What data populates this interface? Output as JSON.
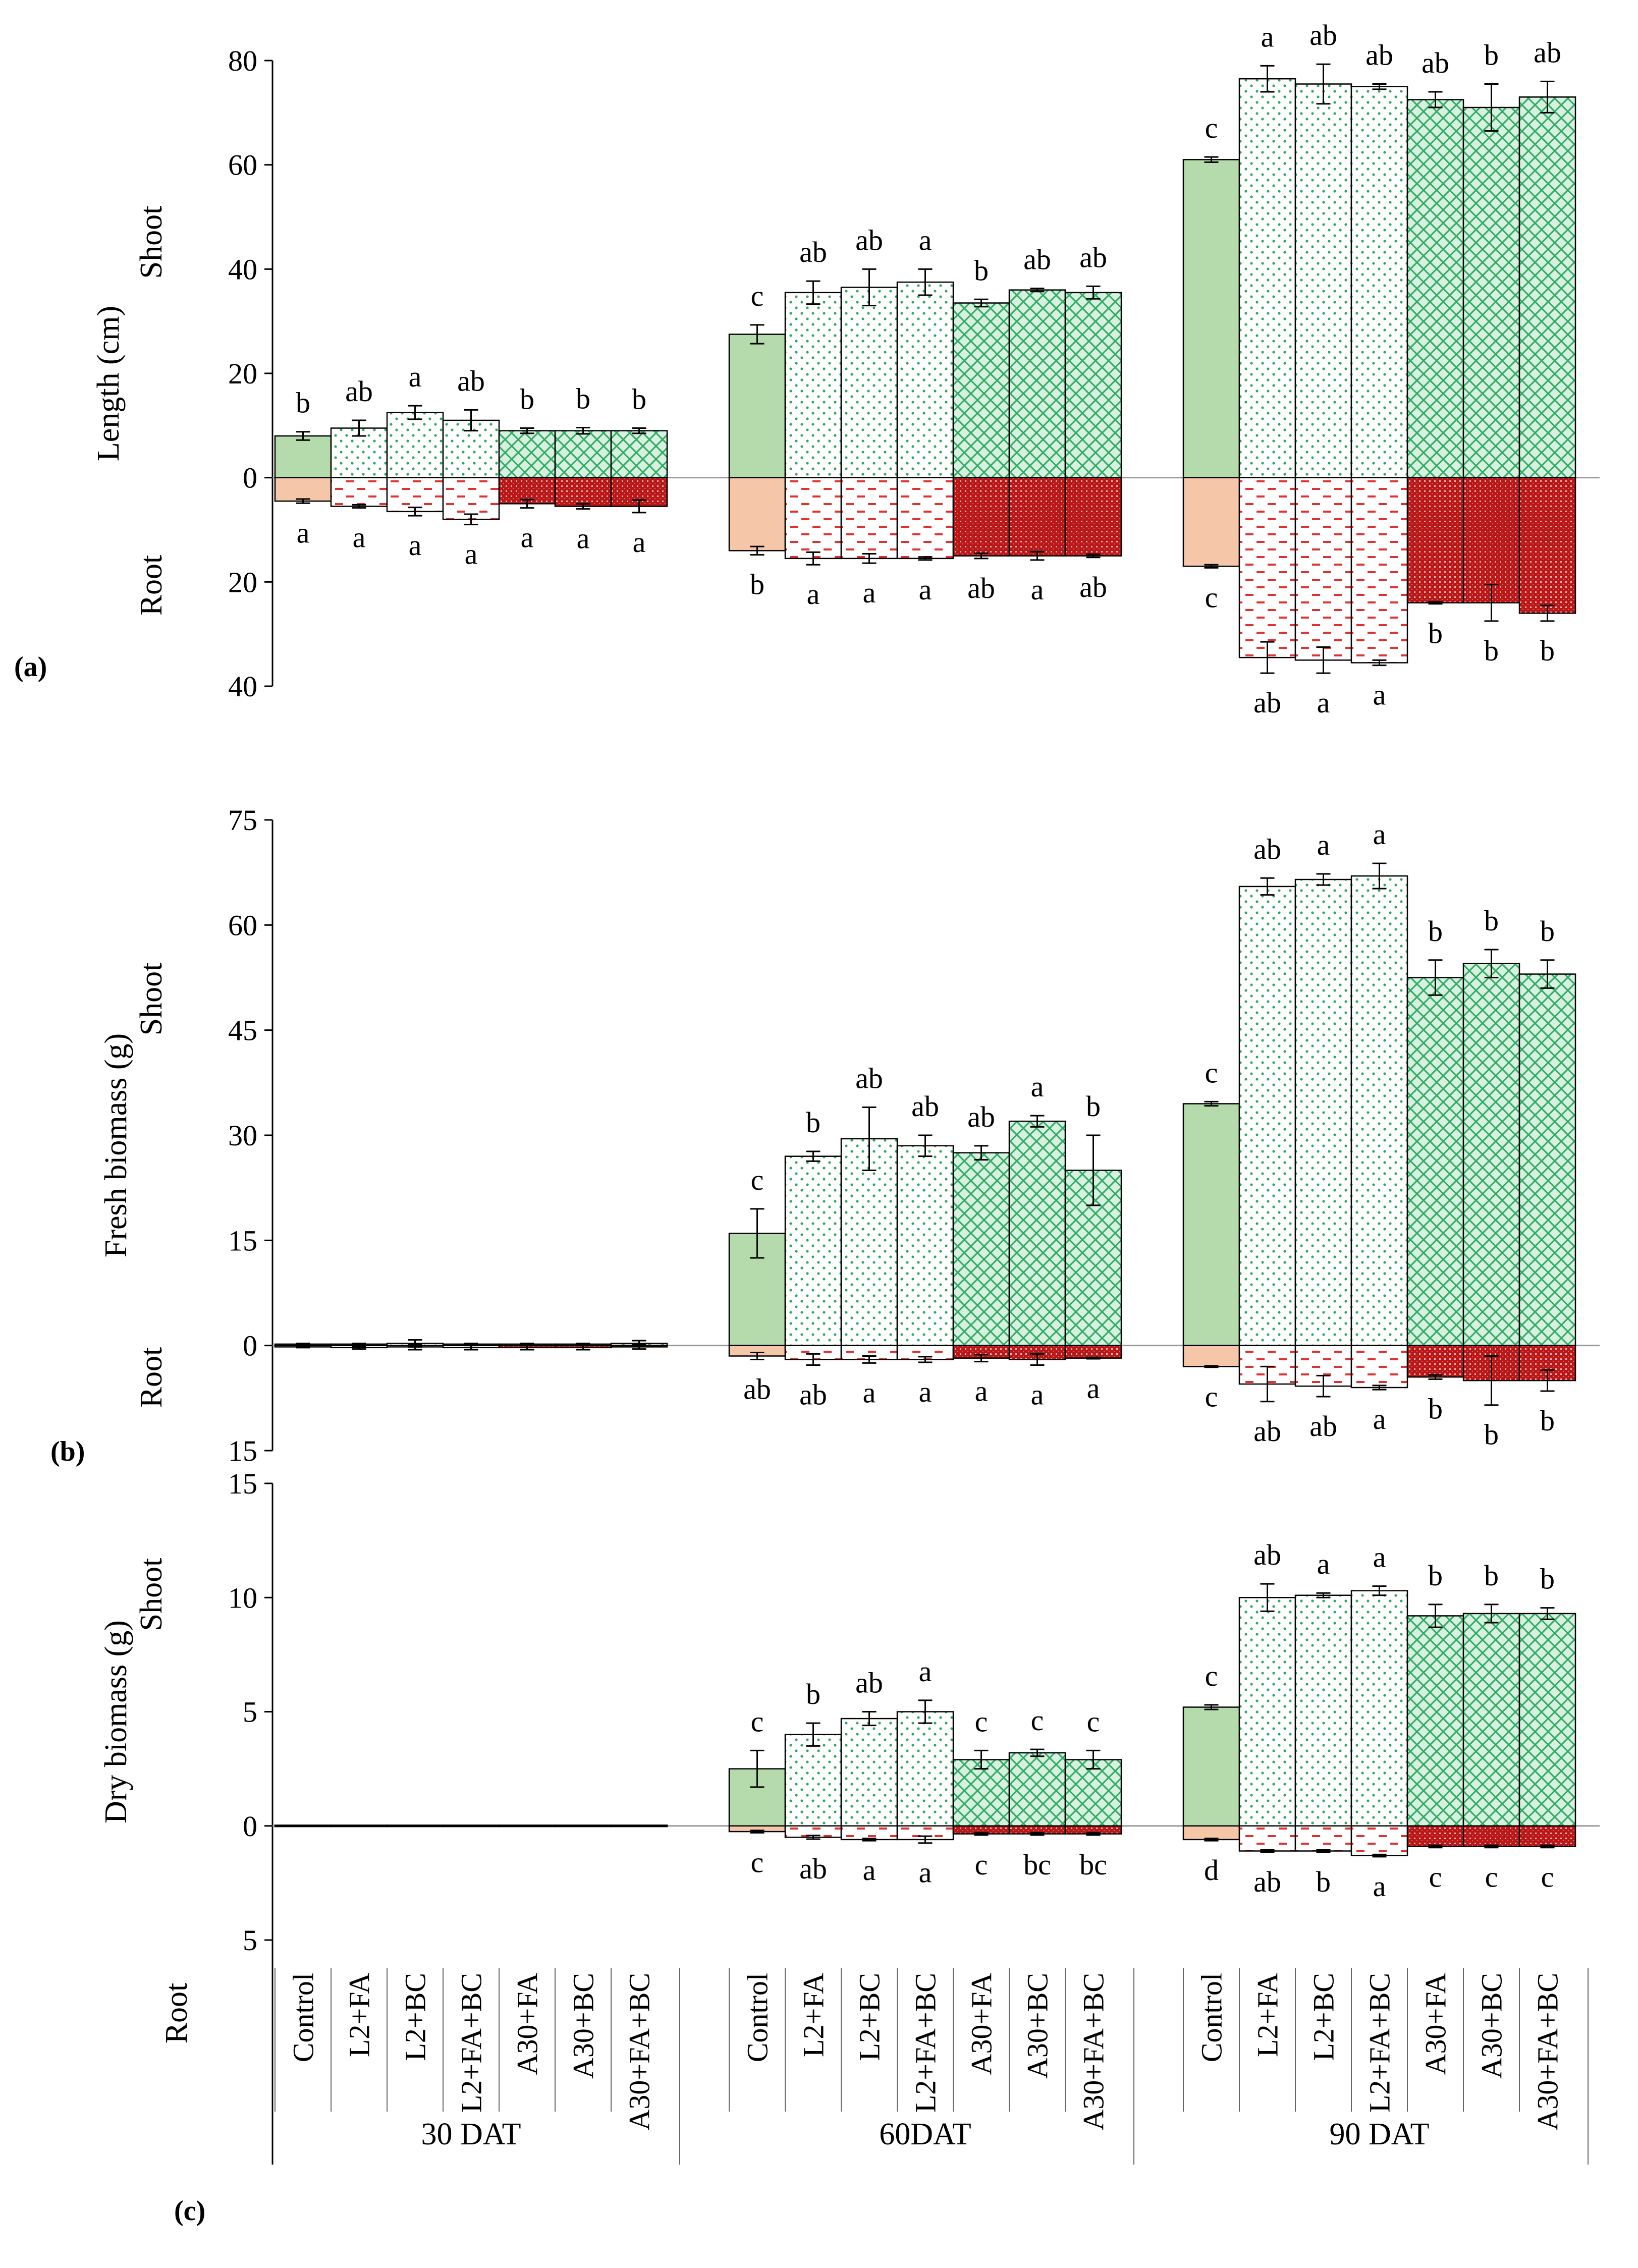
{
  "colors": {
    "control_shoot": "#b5dbad",
    "control_root": "#f6c6a8",
    "L2_shoot_dot": "#2ea85e",
    "L2_root_dash": "#e03030",
    "A30_shoot_fill": "#d8f0df",
    "A30_shoot_hatch": "#32ad66",
    "A30_root_fill": "#b81818",
    "A30_root_dot": "#ffb0b0",
    "axis": "#000000",
    "zero_line": "#999999"
  },
  "chart_data": [
    {
      "type": "bar",
      "panel_label": "(a)",
      "ylabel": "Length (cm)",
      "shoot_label": "Shoot",
      "root_label": "Root",
      "ylim": [
        -40,
        80
      ],
      "ticks": [
        80,
        60,
        40,
        20,
        0,
        -20,
        -40
      ],
      "tick_labels": [
        "80",
        "60",
        "40",
        "20",
        "0",
        "20",
        "40"
      ],
      "groups": [
        "30 DAT",
        "60DAT",
        "90 DAT"
      ],
      "categories": [
        "Control",
        "L2+FA",
        "L2+BC",
        "L2+FA+BC",
        "A30+FA",
        "A30+BC",
        "A30+FA+BC"
      ],
      "series": [
        {
          "name": "Shoot",
          "values": [
            [
              8,
              9.5,
              12.5,
              11,
              9,
              9,
              9
            ],
            [
              27.5,
              35.5,
              36.5,
              37.5,
              33.5,
              36,
              35.5
            ],
            [
              61,
              76.5,
              75.5,
              75,
              72.5,
              71,
              73
            ]
          ],
          "errors": [
            [
              0.8,
              1.5,
              1.3,
              2,
              0.5,
              0.6,
              0.5
            ],
            [
              1.8,
              2.2,
              3.5,
              2.5,
              0.7,
              0.3,
              1.2
            ],
            [
              0.5,
              2.5,
              3.8,
              0.5,
              1.5,
              4.5,
              3
            ]
          ],
          "letters": [
            [
              "b",
              "ab",
              "a",
              "ab",
              "b",
              "b",
              "b"
            ],
            [
              "c",
              "ab",
              "ab",
              "a",
              "b",
              "ab",
              "ab"
            ],
            [
              "c",
              "a",
              "ab",
              "ab",
              "ab",
              "b",
              "ab"
            ]
          ]
        },
        {
          "name": "Root",
          "values": [
            [
              4.5,
              5.5,
              6.5,
              8,
              5,
              5.5,
              5.5
            ],
            [
              14,
              15.5,
              15.5,
              15.5,
              15,
              15,
              15
            ],
            [
              17,
              34.5,
              35,
              35.5,
              24,
              24,
              26
            ]
          ],
          "errors": [
            [
              0.4,
              0.3,
              0.8,
              1,
              0.8,
              0.5,
              1.2
            ],
            [
              0.8,
              1.2,
              0.9,
              0.3,
              0.5,
              0.8,
              0.3
            ],
            [
              0.3,
              3,
              2.5,
              0.5,
              0.2,
              3.5,
              1.5
            ]
          ],
          "letters": [
            [
              "a",
              "a",
              "a",
              "a",
              "a",
              "a",
              "a"
            ],
            [
              "b",
              "a",
              "a",
              "a",
              "ab",
              "a",
              "ab"
            ],
            [
              "c",
              "ab",
              "a",
              "a",
              "b",
              "b",
              "b"
            ]
          ]
        }
      ]
    },
    {
      "type": "bar",
      "panel_label": "(b)",
      "ylabel": "Fresh biomass (g)",
      "shoot_label": "Shoot",
      "root_label": "Root",
      "ylim": [
        -15,
        75
      ],
      "ticks": [
        75,
        60,
        45,
        30,
        15,
        0,
        -15
      ],
      "tick_labels": [
        "75",
        "60",
        "45",
        "30",
        "15",
        "0",
        "15"
      ],
      "groups": [
        "30 DAT",
        "60DAT",
        "90 DAT"
      ],
      "categories": [
        "Control",
        "L2+FA",
        "L2+BC",
        "L2+FA+BC",
        "A30+FA",
        "A30+BC",
        "A30+FA+BC"
      ],
      "series": [
        {
          "name": "Shoot",
          "values": [
            [
              0.2,
              0.2,
              0.3,
              0.2,
              0.2,
              0.2,
              0.3
            ],
            [
              16,
              27,
              29.5,
              28.5,
              27.5,
              32,
              25
            ],
            [
              34.5,
              65.5,
              66.5,
              67,
              52.5,
              54.5,
              53
            ]
          ],
          "errors": [
            [
              0.1,
              0.1,
              0.5,
              0.1,
              0.1,
              0.1,
              0.4
            ],
            [
              3.5,
              0.7,
              4.5,
              1.5,
              1,
              0.8,
              5
            ],
            [
              0.3,
              1.2,
              0.8,
              1.8,
              2.5,
              2,
              2
            ]
          ],
          "letters": [
            [
              "",
              "",
              "",
              "",
              "",
              "",
              ""
            ],
            [
              "c",
              "b",
              "ab",
              "ab",
              "ab",
              "a",
              "b"
            ],
            [
              "c",
              "ab",
              "a",
              "a",
              "b",
              "b",
              "b"
            ]
          ]
        },
        {
          "name": "Root",
          "values": [
            [
              0.2,
              0.3,
              0.2,
              0.3,
              0.3,
              0.3,
              0.2
            ],
            [
              1.5,
              2,
              2,
              2,
              1.8,
              2,
              1.8
            ],
            [
              3,
              5.5,
              5.8,
              6,
              4.5,
              5,
              5
            ]
          ],
          "errors": [
            [
              0.1,
              0.2,
              0.4,
              0.3,
              0.3,
              0.3,
              0.3
            ],
            [
              0.5,
              0.8,
              0.5,
              0.4,
              0.5,
              0.8,
              0.1
            ],
            [
              0.1,
              2.5,
              1.5,
              0.3,
              0.3,
              3.5,
              1.5
            ]
          ],
          "letters": [
            [
              "",
              "",
              "",
              "",
              "",
              "",
              ""
            ],
            [
              "ab",
              "ab",
              "a",
              "a",
              "a",
              "a",
              "a"
            ],
            [
              "c",
              "ab",
              "ab",
              "a",
              "b",
              "b",
              "b"
            ]
          ]
        }
      ]
    },
    {
      "type": "bar",
      "panel_label": "(c)",
      "ylabel": "Dry biomass (g)",
      "shoot_label": "Shoot",
      "root_label": "Root",
      "ylim": [
        -5,
        15
      ],
      "ticks": [
        15,
        10,
        5,
        0,
        -5
      ],
      "tick_labels": [
        "15",
        "10",
        "5",
        "0",
        "5"
      ],
      "groups": [
        "30 DAT",
        "60DAT",
        "90 DAT"
      ],
      "categories": [
        "Control",
        "L2+FA",
        "L2+BC",
        "L2+FA+BC",
        "A30+FA",
        "A30+BC",
        "A30+FA+BC"
      ],
      "series": [
        {
          "name": "Shoot",
          "values": [
            [
              0.03,
              0.03,
              0.03,
              0.03,
              0.03,
              0.03,
              0.03
            ],
            [
              2.5,
              4,
              4.7,
              5,
              2.9,
              3.2,
              2.9
            ],
            [
              5.2,
              10,
              10.1,
              10.3,
              9.2,
              9.3,
              9.3
            ]
          ],
          "errors": [
            [
              0,
              0,
              0,
              0,
              0,
              0,
              0
            ],
            [
              0.8,
              0.5,
              0.3,
              0.5,
              0.4,
              0.15,
              0.4
            ],
            [
              0.1,
              0.6,
              0.1,
              0.2,
              0.5,
              0.4,
              0.25
            ]
          ],
          "letters": [
            [
              "",
              "",
              "",
              "",
              "",
              "",
              ""
            ],
            [
              "c",
              "b",
              "ab",
              "a",
              "c",
              "c",
              "c"
            ],
            [
              "c",
              "ab",
              "a",
              "a",
              "b",
              "b",
              "b"
            ]
          ]
        },
        {
          "name": "Root",
          "values": [
            [
              0.03,
              0.03,
              0.03,
              0.03,
              0.03,
              0.03,
              0.03
            ],
            [
              0.25,
              0.5,
              0.6,
              0.6,
              0.35,
              0.35,
              0.35
            ],
            [
              0.6,
              1.1,
              1.1,
              1.3,
              0.9,
              0.9,
              0.9
            ]
          ],
          "errors": [
            [
              0,
              0,
              0,
              0,
              0,
              0,
              0
            ],
            [
              0.05,
              0.08,
              0.05,
              0.15,
              0.05,
              0.05,
              0.05
            ],
            [
              0.05,
              0.05,
              0.05,
              0.05,
              0.05,
              0.05,
              0.05
            ]
          ],
          "letters": [
            [
              "",
              "",
              "",
              "",
              "",
              "",
              ""
            ],
            [
              "c",
              "ab",
              "a",
              "a",
              "c",
              "bc",
              "bc"
            ],
            [
              "d",
              "ab",
              "b",
              "a",
              "c",
              "c",
              "c"
            ]
          ]
        }
      ]
    }
  ]
}
